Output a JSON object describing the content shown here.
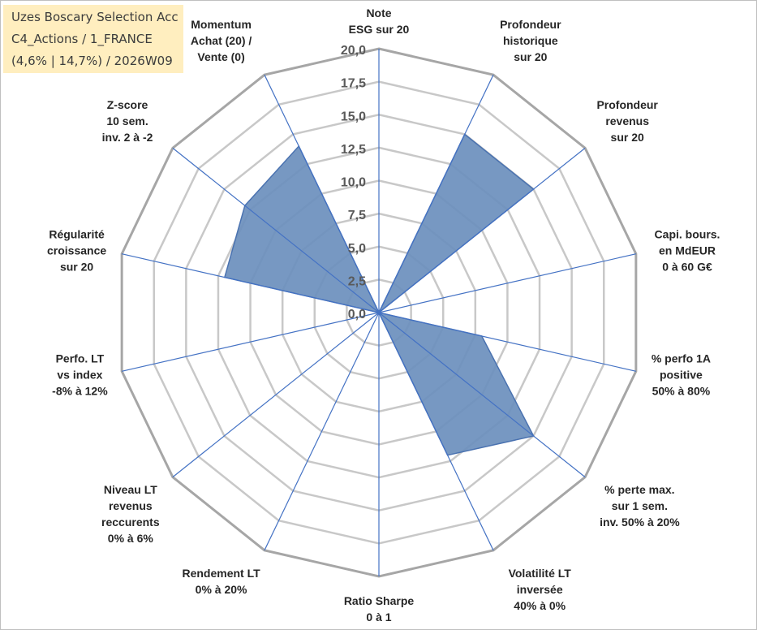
{
  "chart_data": {
    "type": "radar",
    "title_lines": [
      "Uzes Boscary Selection Acc",
      "C4_Actions / 1_FRANCE",
      "(4,6% | 14,7%) / 2026W09"
    ],
    "axes": [
      {
        "lines": [
          "Note",
          "ESG sur 20"
        ],
        "value": 0
      },
      {
        "lines": [
          "Profondeur",
          "historique",
          "sur 20"
        ],
        "value": 15
      },
      {
        "lines": [
          "Profondeur",
          "revenus",
          "sur 20"
        ],
        "value": 15
      },
      {
        "lines": [
          "Capi. bours.",
          "en MdEUR",
          "0 à 60 G€"
        ],
        "value": 0
      },
      {
        "lines": [
          "% perfo 1A",
          "positive",
          "50% à 80%"
        ],
        "value": 8
      },
      {
        "lines": [
          "% perte max.",
          "sur 1 sem.",
          "inv. 50% à 20%"
        ],
        "value": 15
      },
      {
        "lines": [
          "Volatilité LT",
          "inversée",
          "40% à 0%"
        ],
        "value": 12
      },
      {
        "lines": [
          "Ratio Sharpe",
          "0 à 1"
        ],
        "value": 0
      },
      {
        "lines": [
          "Rendement LT",
          "0% à 20%"
        ],
        "value": 0
      },
      {
        "lines": [
          "Niveau LT",
          "revenus",
          "reccurents",
          "0% à 6%"
        ],
        "value": 0
      },
      {
        "lines": [
          "Perfo. LT",
          "vs index",
          "-8% à 12%"
        ],
        "value": 0
      },
      {
        "lines": [
          "Régularité",
          "croissance",
          "sur 20"
        ],
        "value": 12
      },
      {
        "lines": [
          "Z-score",
          "10 sem.",
          "inv. 2 à -2"
        ],
        "value": 13
      },
      {
        "lines": [
          "Momentum",
          "Achat (20) /",
          "Vente (0)"
        ],
        "value": 14
      }
    ],
    "r_ticks": [
      "0,0",
      "2,5",
      "5,0",
      "7,5",
      "10,0",
      "12,5",
      "15,0",
      "17,5",
      "20,0"
    ],
    "r_range": [
      0,
      20
    ],
    "r_step": 2.5,
    "colors": {
      "fill": "#6b8fbd",
      "stroke": "#4a72b0",
      "spoke": "#4472c4",
      "grid": "#c8c8c8",
      "outer_ring": "#a6a6a6"
    }
  }
}
